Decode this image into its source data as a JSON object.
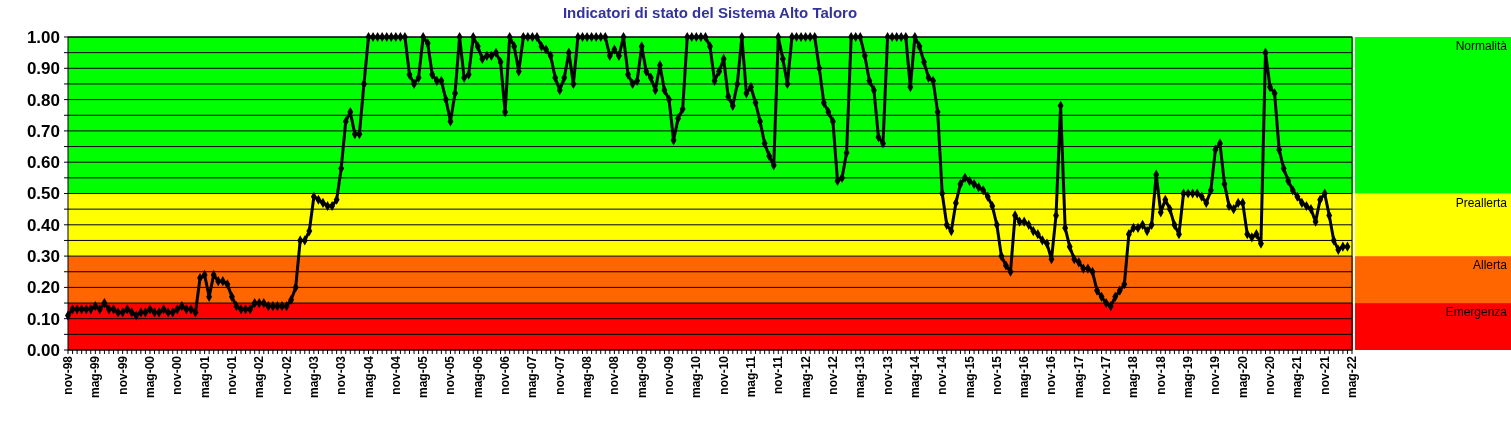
{
  "chart_data": {
    "type": "line",
    "title": "Indicatori di stato del Sistema Alto Taloro",
    "categories": [
      "nov-98",
      null,
      null,
      null,
      null,
      null,
      "mag-99",
      null,
      null,
      null,
      null,
      null,
      "nov-99",
      null,
      null,
      null,
      null,
      null,
      "mag-00",
      null,
      null,
      null,
      null,
      null,
      "nov-00",
      null,
      null,
      null,
      null,
      null,
      "mag-01",
      null,
      null,
      null,
      null,
      null,
      "nov-01",
      null,
      null,
      null,
      null,
      null,
      "mag-02",
      null,
      null,
      null,
      null,
      null,
      "nov-02",
      null,
      null,
      null,
      null,
      null,
      "mag-03",
      null,
      null,
      null,
      null,
      null,
      "nov-03",
      null,
      null,
      null,
      null,
      null,
      "mag-04",
      null,
      null,
      null,
      null,
      null,
      "nov-04",
      null,
      null,
      null,
      null,
      null,
      "mag-05",
      null,
      null,
      null,
      null,
      null,
      "nov-05",
      null,
      null,
      null,
      null,
      null,
      "mag-06",
      null,
      null,
      null,
      null,
      null,
      "nov-06",
      null,
      null,
      null,
      null,
      null,
      "mag-07",
      null,
      null,
      null,
      null,
      null,
      "nov-07",
      null,
      null,
      null,
      null,
      null,
      "mag-08",
      null,
      null,
      null,
      null,
      null,
      "nov-08",
      null,
      null,
      null,
      null,
      null,
      "mag-09",
      null,
      null,
      null,
      null,
      null,
      "nov-09",
      null,
      null,
      null,
      null,
      null,
      "mag-10",
      null,
      null,
      null,
      null,
      null,
      "nov-10",
      null,
      null,
      null,
      null,
      null,
      "mag-11",
      null,
      null,
      null,
      null,
      null,
      "nov-11",
      null,
      null,
      null,
      null,
      null,
      "mag-12",
      null,
      null,
      null,
      null,
      null,
      "nov-12",
      null,
      null,
      null,
      null,
      null,
      "mag-13",
      null,
      null,
      null,
      null,
      null,
      "nov-13",
      null,
      null,
      null,
      null,
      null,
      "mag-14",
      null,
      null,
      null,
      null,
      null,
      "nov-14",
      null,
      null,
      null,
      null,
      null,
      "mag-15",
      null,
      null,
      null,
      null,
      null,
      "nov-15",
      null,
      null,
      null,
      null,
      null,
      "mag-16",
      null,
      null,
      null,
      null,
      null,
      "nov-16",
      null,
      null,
      null,
      null,
      null,
      "mag-17",
      null,
      null,
      null,
      null,
      null,
      "nov-17",
      null,
      null,
      null,
      null,
      null,
      "mag-18",
      null,
      null,
      null,
      null,
      null,
      "nov-18",
      null,
      null,
      null,
      null,
      null,
      "mag-19",
      null,
      null,
      null,
      null,
      null,
      "nov-19",
      null,
      null,
      null,
      null,
      null,
      "mag-20",
      null,
      null,
      null,
      null,
      null,
      "nov-20",
      null,
      null,
      null,
      null,
      null,
      "mag-21",
      null,
      null,
      null,
      null,
      null,
      "nov-21",
      null,
      null,
      null,
      null,
      null,
      "mag-22"
    ],
    "series": [
      {
        "color": "#000000",
        "values": [
          0.11,
          0.13,
          0.13,
          0.13,
          0.13,
          0.13,
          0.14,
          0.13,
          0.15,
          0.13,
          0.13,
          0.12,
          0.12,
          0.13,
          0.12,
          0.11,
          0.12,
          0.12,
          0.13,
          0.12,
          0.12,
          0.13,
          0.12,
          0.12,
          0.13,
          0.14,
          0.13,
          0.13,
          0.12,
          0.23,
          0.24,
          0.17,
          0.24,
          0.22,
          0.22,
          0.21,
          0.17,
          0.14,
          0.13,
          0.13,
          0.13,
          0.15,
          0.15,
          0.15,
          0.14,
          0.14,
          0.14,
          0.14,
          0.14,
          0.16,
          0.2,
          0.35,
          0.35,
          0.38,
          0.49,
          0.48,
          0.47,
          0.46,
          0.46,
          0.48,
          0.58,
          0.73,
          0.76,
          0.69,
          0.69,
          0.85,
          1,
          1,
          1,
          1,
          1,
          1,
          1,
          1,
          1,
          0.88,
          0.85,
          0.87,
          1,
          0.98,
          0.88,
          0.86,
          0.86,
          0.8,
          0.73,
          0.82,
          1,
          0.87,
          0.88,
          1,
          0.97,
          0.93,
          0.94,
          0.94,
          0.95,
          0.92,
          0.76,
          1,
          0.97,
          0.89,
          1,
          1,
          1,
          1,
          0.97,
          0.96,
          0.94,
          0.87,
          0.83,
          0.87,
          0.95,
          0.85,
          1,
          1,
          1,
          1,
          1,
          1,
          1,
          0.94,
          0.96,
          0.94,
          1,
          0.88,
          0.85,
          0.86,
          0.97,
          0.89,
          0.87,
          0.83,
          0.91,
          0.83,
          0.8,
          0.67,
          0.74,
          0.77,
          1,
          1,
          1,
          1,
          1,
          0.97,
          0.86,
          0.89,
          0.93,
          0.81,
          0.78,
          0.85,
          1,
          0.82,
          0.84,
          0.79,
          0.73,
          0.66,
          0.62,
          0.59,
          1,
          0.93,
          0.85,
          1,
          1,
          1,
          1,
          1,
          1,
          0.9,
          0.79,
          0.76,
          0.73,
          0.54,
          0.55,
          0.63,
          1,
          1,
          1,
          0.94,
          0.86,
          0.83,
          0.68,
          0.66,
          1,
          1,
          1,
          1,
          1,
          0.84,
          1,
          0.97,
          0.92,
          0.87,
          0.86,
          0.76,
          0.5,
          0.4,
          0.38,
          0.47,
          0.53,
          0.55,
          0.54,
          0.53,
          0.52,
          0.51,
          0.49,
          0.46,
          0.4,
          0.3,
          0.27,
          0.25,
          0.43,
          0.41,
          0.41,
          0.4,
          0.38,
          0.37,
          0.35,
          0.34,
          0.29,
          0.43,
          0.78,
          0.39,
          0.33,
          0.29,
          0.28,
          0.26,
          0.26,
          0.25,
          0.19,
          0.17,
          0.15,
          0.14,
          0.17,
          0.19,
          0.21,
          0.37,
          0.39,
          0.39,
          0.4,
          0.38,
          0.4,
          0.56,
          0.44,
          0.48,
          0.45,
          0.4,
          0.37,
          0.5,
          0.5,
          0.5,
          0.5,
          0.49,
          0.47,
          0.51,
          0.64,
          0.66,
          0.53,
          0.46,
          0.45,
          0.47,
          0.47,
          0.37,
          0.36,
          0.37,
          0.34,
          0.95,
          0.84,
          0.82,
          0.64,
          0.58,
          0.54,
          0.51,
          0.49,
          0.47,
          0.46,
          0.45,
          0.41,
          0.48,
          0.5,
          0.43,
          0.35,
          0.32,
          0.33,
          0.33,
          null
        ]
      }
    ],
    "ylim": [
      0,
      1
    ],
    "yticks": [
      {
        "value": 0,
        "label": "0.00"
      },
      {
        "value": 0.05,
        "label": null
      },
      {
        "value": 0.1,
        "label": "0.10"
      },
      {
        "value": 0.15,
        "label": null
      },
      {
        "value": 0.2,
        "label": "0.20"
      },
      {
        "value": 0.25,
        "label": null
      },
      {
        "value": 0.3,
        "label": "0.30"
      },
      {
        "value": 0.35,
        "label": null
      },
      {
        "value": 0.4,
        "label": "0.40"
      },
      {
        "value": 0.45,
        "label": null
      },
      {
        "value": 0.5,
        "label": "0.50"
      },
      {
        "value": 0.55,
        "label": null
      },
      {
        "value": 0.6,
        "label": "0.60"
      },
      {
        "value": 0.65,
        "label": null
      },
      {
        "value": 0.7,
        "label": "0.70"
      },
      {
        "value": 0.75,
        "label": null
      },
      {
        "value": 0.8,
        "label": "0.80"
      },
      {
        "value": 0.85,
        "label": null
      },
      {
        "value": 0.9,
        "label": "0.90"
      },
      {
        "value": 0.95,
        "label": null
      },
      {
        "value": 1,
        "label": "1.00"
      }
    ],
    "grid": "y",
    "marker": "diamond",
    "line_style": "solid",
    "bands": [
      {
        "axis": "y",
        "from": 0,
        "to": 0.15,
        "label": "Emergenza",
        "color": "#ff0000"
      },
      {
        "axis": "y",
        "from": 0.15,
        "to": 0.3,
        "label": "Allerta",
        "color": "#ff6600"
      },
      {
        "axis": "y",
        "from": 0.3,
        "to": 0.5,
        "label": "Preallerta",
        "color": "#ffff00"
      },
      {
        "axis": "y",
        "from": 0.5,
        "to": 1,
        "label": "Normalità",
        "color": "#00ff00"
      }
    ]
  }
}
